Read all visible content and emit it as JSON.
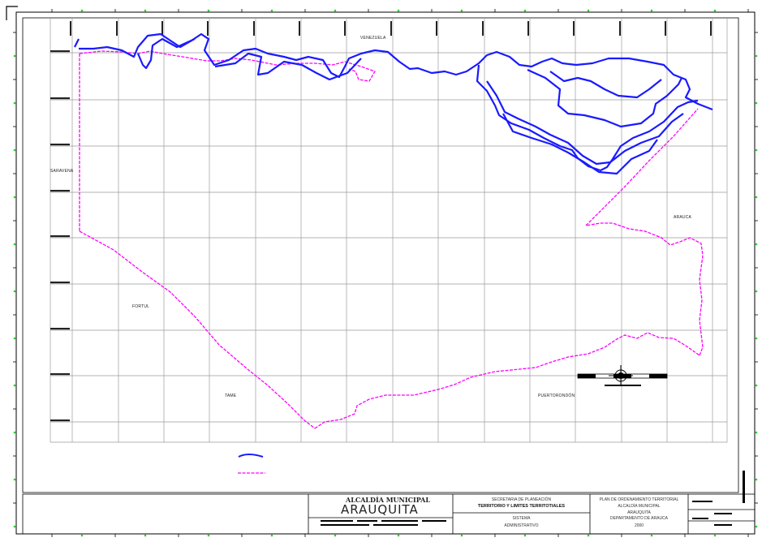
{
  "map": {
    "labels": {
      "venezuela": "VENEZUELA",
      "saravena": "SARAVENA",
      "arauca": "ARAUCA",
      "fortul": "FORTUL",
      "tame": "TAME",
      "puerto_rondon": "PUERTORONDÓN"
    },
    "colors": {
      "river": "#1a1aff",
      "boundary": "#ff00ff",
      "grid": "#9a9a9a",
      "tick_marks": "#33cc33",
      "frame": "#000000"
    },
    "legend": [
      {
        "symbol": "river-line-icon",
        "color": "#1a1aff"
      },
      {
        "symbol": "boundary-dashed-line-icon",
        "color": "#ff00ff"
      }
    ]
  },
  "title_block": {
    "logo_line1": "ALCALDÍA MUNICIPAL",
    "logo_line2": "ARAUQUITA",
    "secretaria": "SECRETARIA DE PLANEACIÓN",
    "territorio": "TERRITORIO Y LIMITES TERRITOTIALES",
    "sistema": "SISTEMA",
    "administrativo": "ADMINISTRATIVO",
    "plan": "PLAN DE ORDENAMIENTO TERRITORIAL",
    "alcaldia": "ALCALDÍA MUNICIPAL",
    "arauquita": "ARAUQUITA",
    "departamento": "DEPARTAMENTO DE ARAUCA",
    "year": "2000"
  },
  "north_arrow": {
    "icon": "compass-rose-icon"
  }
}
